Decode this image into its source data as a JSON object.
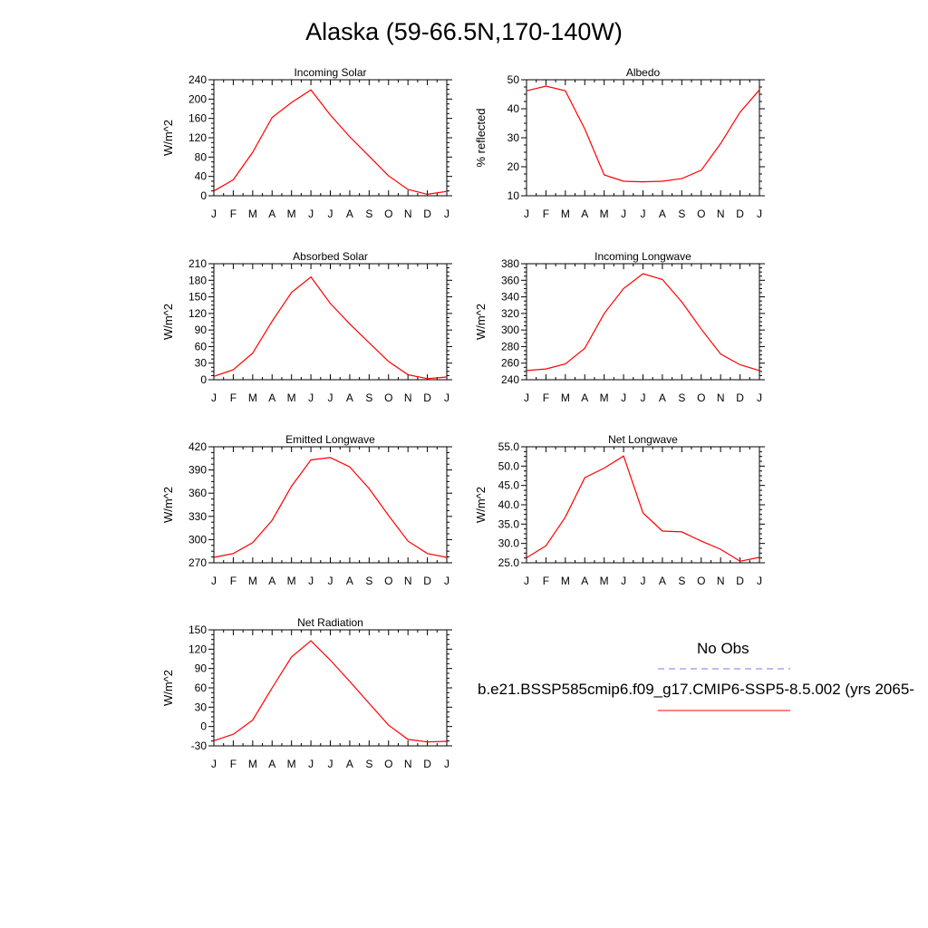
{
  "title": "Alaska (59-66.5N,170-140W)",
  "months": [
    "J",
    "F",
    "M",
    "A",
    "M",
    "J",
    "J",
    "A",
    "S",
    "O",
    "N",
    "D",
    "J"
  ],
  "legend": {
    "obs_label": "No Obs",
    "model_label": "b.e21.BSSP585cmip6.f09_g17.CMIP6-SSP5-8.5.002 (yrs 2065-",
    "obs_color": "#7a7ae6",
    "model_color": "#ff0000"
  },
  "chart_data": [
    {
      "type": "line",
      "title": "Incoming Solar",
      "ylabel": "W/m^2",
      "ylim": [
        0,
        240
      ],
      "yticks": [
        "0",
        "40",
        "80",
        "120",
        "160",
        "200",
        "240"
      ],
      "series": [
        {
          "values": [
            10,
            33,
            90,
            162,
            193,
            219,
            167,
            122,
            82,
            41,
            13,
            3,
            9
          ]
        }
      ]
    },
    {
      "type": "line",
      "title": "Albedo",
      "ylabel": "% reflected",
      "ylim": [
        10,
        50
      ],
      "yticks": [
        "10",
        "20",
        "30",
        "40",
        "50"
      ],
      "series": [
        {
          "values": [
            46.2,
            47.8,
            46.2,
            33.0,
            17.2,
            15.0,
            14.8,
            15.0,
            15.9,
            18.8,
            28.0,
            38.8,
            46.5
          ]
        }
      ]
    },
    {
      "type": "line",
      "title": "Absorbed Solar",
      "ylabel": "W/m^2",
      "ylim": [
        0,
        210
      ],
      "yticks": [
        "0",
        "30",
        "60",
        "90",
        "120",
        "150",
        "180",
        "210"
      ],
      "series": [
        {
          "values": [
            6,
            18,
            48,
            106,
            158,
            186,
            138,
            101,
            67,
            33,
            9,
            2,
            5
          ]
        }
      ]
    },
    {
      "type": "line",
      "title": "Incoming Longwave",
      "ylabel": "W/m^2",
      "ylim": [
        240,
        380
      ],
      "yticks": [
        "240",
        "260",
        "280",
        "300",
        "320",
        "340",
        "360",
        "380"
      ],
      "series": [
        {
          "values": [
            251,
            253,
            259,
            278,
            320,
            350,
            368,
            361,
            334,
            301,
            271,
            258,
            251
          ]
        }
      ]
    },
    {
      "type": "line",
      "title": "Emitted Longwave",
      "ylabel": "W/m^2",
      "ylim": [
        270,
        420
      ],
      "yticks": [
        "270",
        "300",
        "330",
        "360",
        "390",
        "420"
      ],
      "series": [
        {
          "values": [
            277,
            282,
            296,
            325,
            369,
            403,
            406,
            394,
            366,
            331,
            298,
            282,
            277
          ]
        }
      ]
    },
    {
      "type": "line",
      "title": "Net Longwave",
      "ylabel": "W/m^2",
      "ylim": [
        25,
        55
      ],
      "yticks": [
        "25.0",
        "30.0",
        "35.0",
        "40.0",
        "45.0",
        "50.0",
        "55.0"
      ],
      "series": [
        {
          "values": [
            26.3,
            29.4,
            36.8,
            47.0,
            49.5,
            52.6,
            37.9,
            33.2,
            33.0,
            30.6,
            28.5,
            25.4,
            26.4
          ]
        }
      ]
    },
    {
      "type": "line",
      "title": "Net Radiation",
      "ylabel": "W/m^2",
      "ylim": [
        -30,
        150
      ],
      "yticks": [
        "-30",
        "0",
        "30",
        "60",
        "90",
        "120",
        "150"
      ],
      "series": [
        {
          "values": [
            -22,
            -12,
            10,
            60,
            108,
            133,
            103,
            70,
            36,
            2,
            -20,
            -24,
            -23
          ]
        }
      ]
    }
  ]
}
